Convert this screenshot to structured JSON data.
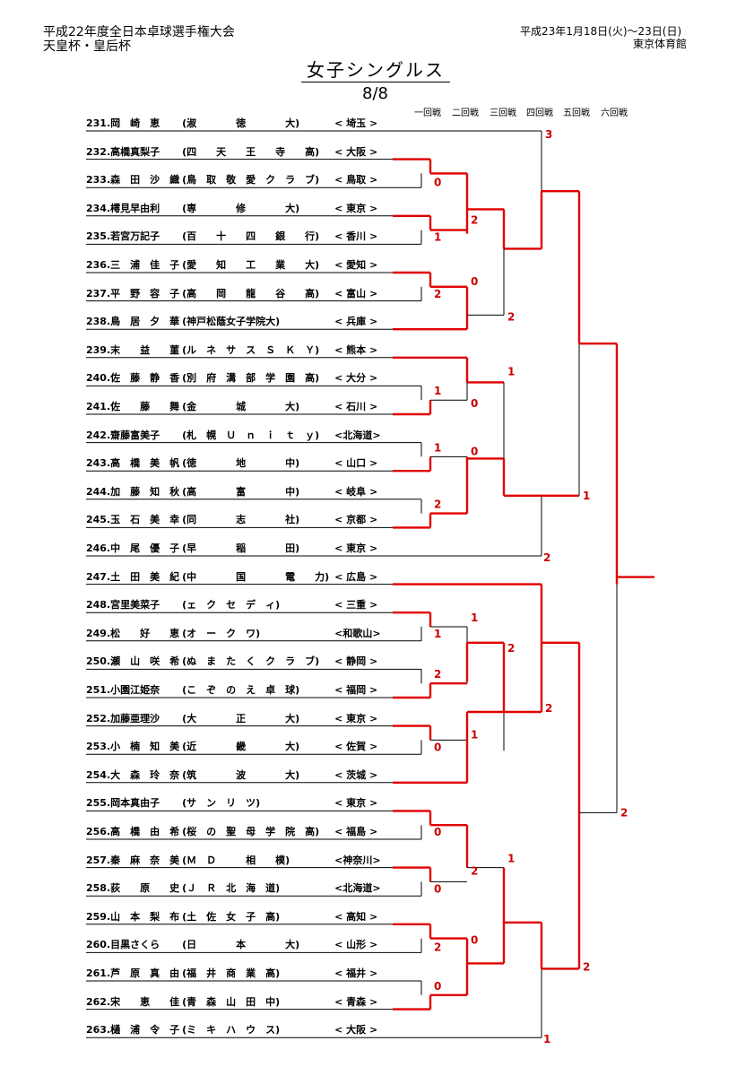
{
  "header": {
    "event_title": "平成22年度全日本卓球選手権大会",
    "cup": "天皇杯・皇后杯",
    "dates": "平成23年1月18日(火)～23日(日)",
    "venue": "東京体育館"
  },
  "bracket_title": "女子シングルス",
  "page": "8/8",
  "rounds": [
    "一回戦",
    "二回戦",
    "三回戦",
    "四回戦",
    "五回戦",
    "六回戦"
  ],
  "colors": {
    "winner_line": "#e00000",
    "loser_line": "#000000",
    "score": "#cc0000"
  },
  "players": [
    {
      "no": "231.",
      "name": "岡　崎　恵",
      "team": "(淑　　　　徳　　　　大)",
      "pref": "< 埼玉 >"
    },
    {
      "no": "232.",
      "name": "高橋真梨子",
      "team": "(四　　天　　王　　寺　　高)",
      "pref": "< 大阪 >"
    },
    {
      "no": "233.",
      "name": "森　田　沙　織",
      "team": "(鳥　取　敬　愛　ク　ラ　ブ)",
      "pref": "< 鳥取 >"
    },
    {
      "no": "234.",
      "name": "樗見早由利",
      "team": "(専　　　　修　　　　大)",
      "pref": "< 東京 >"
    },
    {
      "no": "235.",
      "name": "若宮万記子",
      "team": "(百　　十　　四　　銀　　行)",
      "pref": "< 香川 >"
    },
    {
      "no": "236.",
      "name": "三　浦　佳　子",
      "team": "(愛　　知　　工　　業　　大)",
      "pref": "< 愛知 >"
    },
    {
      "no": "237.",
      "name": "平　野　容　子",
      "team": "(高　　岡　　龍　　谷　　高)",
      "pref": "< 富山 >"
    },
    {
      "no": "238.",
      "name": "鳥　居　夕　華",
      "team": "(神戸松蔭女子学院大)",
      "pref": "< 兵庫 >"
    },
    {
      "no": "239.",
      "name": "末　　益　　菫",
      "team": "(ル　ネ　サ　ス　Ｓ　Ｋ　Ｙ)",
      "pref": "< 熊本 >"
    },
    {
      "no": "240.",
      "name": "佐　藤　静　香",
      "team": "(別　府　溝　部　学　園　高)",
      "pref": "< 大分 >"
    },
    {
      "no": "241.",
      "name": "佐　　藤　　舞",
      "team": "(金　　　　城　　　　大)",
      "pref": "< 石川 >"
    },
    {
      "no": "242.",
      "name": "齋藤富美子",
      "team": "(札　幌　Ｕ　ｎ　ｉ　ｔ　ｙ)",
      "pref": "<北海道>"
    },
    {
      "no": "243.",
      "name": "高　橋　美　帆",
      "team": "(徳　　　　地　　　　中)",
      "pref": "< 山口 >"
    },
    {
      "no": "244.",
      "name": "加　藤　知　秋",
      "team": "(高　　　　富　　　　中)",
      "pref": "< 岐阜 >"
    },
    {
      "no": "245.",
      "name": "玉　石　美　幸",
      "team": "(同　　　　志　　　　社)",
      "pref": "< 京都 >"
    },
    {
      "no": "246.",
      "name": "中　尾　優　子",
      "team": "(早　　　　稲　　　　田)",
      "pref": "< 東京 >"
    },
    {
      "no": "247.",
      "name": "土　田　美　紀",
      "team": "(中　　　　国　　　　電　　力)",
      "pref": "< 広島 >"
    },
    {
      "no": "248.",
      "name": "宮里美菜子",
      "team": "(ェ　ク　セ　デ　ィ)",
      "pref": "< 三重 >"
    },
    {
      "no": "249.",
      "name": "松　　好　　恵",
      "team": "(オ　ー　ク　ワ)",
      "pref": "<和歌山>"
    },
    {
      "no": "250.",
      "name": "瀬　山　咲　希",
      "team": "(ぬ　ま　た　く　ク　ラ　ブ)",
      "pref": "< 静岡 >"
    },
    {
      "no": "251.",
      "name": "小園江姫奈",
      "team": "(こ　ぞ　の　え　卓　球)",
      "pref": "< 福岡 >"
    },
    {
      "no": "252.",
      "name": "加藤亜理沙",
      "team": "(大　　　　正　　　　大)",
      "pref": "< 東京 >"
    },
    {
      "no": "253.",
      "name": "小　楠　知　美",
      "team": "(近　　　　畿　　　　大)",
      "pref": "< 佐賀 >"
    },
    {
      "no": "254.",
      "name": "大　森　玲　奈",
      "team": "(筑　　　　波　　　　大)",
      "pref": "< 茨城 >"
    },
    {
      "no": "255.",
      "name": "岡本真由子",
      "team": "(サ　ン　リ　ツ)",
      "pref": "< 東京 >"
    },
    {
      "no": "256.",
      "name": "高　橋　由　希",
      "team": "(桜　の　聖　母　学　院　高)",
      "pref": "< 福島 >"
    },
    {
      "no": "257.",
      "name": "秦　麻　奈　美",
      "team": "(Ｍ　Ｄ　　　相　　模)",
      "pref": "<神奈川>"
    },
    {
      "no": "258.",
      "name": "荻　　原　　史",
      "team": "(Ｊ　Ｒ　北　海　道)",
      "pref": "<北海道>"
    },
    {
      "no": "259.",
      "name": "山　本　梨　布",
      "team": "(土　佐　女　子　高)",
      "pref": "< 高知 >"
    },
    {
      "no": "260.",
      "name": "目黒さくら",
      "team": "(日　　　　本　　　　大)",
      "pref": "< 山形 >"
    },
    {
      "no": "261.",
      "name": "芦　原　真　由",
      "team": "(福　井　商　業　高)",
      "pref": "< 福井 >"
    },
    {
      "no": "262.",
      "name": "宋　　恵　　佳",
      "team": "(青　森　山　田　中)",
      "pref": "< 青森 >"
    },
    {
      "no": "263.",
      "name": "樋　浦　令　子",
      "team": "(ミ　キ　ハ　ウ　ス)",
      "pref": "< 大阪 >"
    }
  ],
  "scores": {
    "r1": [
      {
        "pair": [
          1,
          2
        ],
        "upper": "",
        "lower": "0"
      },
      {
        "pair": [
          3,
          4
        ],
        "upper": "",
        "lower": "1"
      },
      {
        "pair": [
          5,
          6
        ],
        "upper": "",
        "lower": "2"
      },
      {
        "pair": [
          9,
          10
        ],
        "upper": "1",
        "lower": "0"
      },
      {
        "pair": [
          11,
          12
        ],
        "upper": "1",
        "lower": ""
      },
      {
        "pair": [
          13,
          14
        ],
        "upper": "2",
        "lower": ""
      },
      {
        "pair": [
          17,
          18
        ],
        "upper": "1",
        "lower": "1"
      },
      {
        "pair": [
          19,
          20
        ],
        "upper": "2",
        "lower": ""
      },
      {
        "pair": [
          21,
          22
        ],
        "upper": "",
        "lower": "0"
      },
      {
        "pair": [
          24,
          25
        ],
        "upper": "0",
        "lower": ""
      },
      {
        "pair": [
          26,
          27
        ],
        "upper": "",
        "lower": "0"
      },
      {
        "pair": [
          28,
          29
        ],
        "upper": "",
        "lower": "2"
      },
      {
        "pair": [
          30,
          31
        ],
        "upper": "0",
        "lower": ""
      }
    ],
    "labels": [
      {
        "id": "s-231",
        "value": "3"
      },
      {
        "id": "s-r2a",
        "value": "2"
      },
      {
        "id": "s-r2b",
        "value": "0"
      },
      {
        "id": "s-r3a",
        "value": "2"
      },
      {
        "id": "s-r2c",
        "value": "1"
      },
      {
        "id": "s-r2d",
        "value": "0"
      },
      {
        "id": "s-r4a",
        "value": "1"
      },
      {
        "id": "s-246",
        "value": "2"
      },
      {
        "id": "s-r2e",
        "value": "2"
      },
      {
        "id": "s-r2f",
        "value": "1"
      },
      {
        "id": "s-r3b",
        "value": "2"
      },
      {
        "id": "s-r2g",
        "value": "1"
      },
      {
        "id": "s-r5a",
        "value": "2"
      },
      {
        "id": "s-r2h",
        "value": "1"
      },
      {
        "id": "s-r2i",
        "value": "2"
      },
      {
        "id": "s-r2j",
        "value": "0"
      },
      {
        "id": "s-r4b",
        "value": "2"
      },
      {
        "id": "s-263",
        "value": "1"
      }
    ]
  }
}
